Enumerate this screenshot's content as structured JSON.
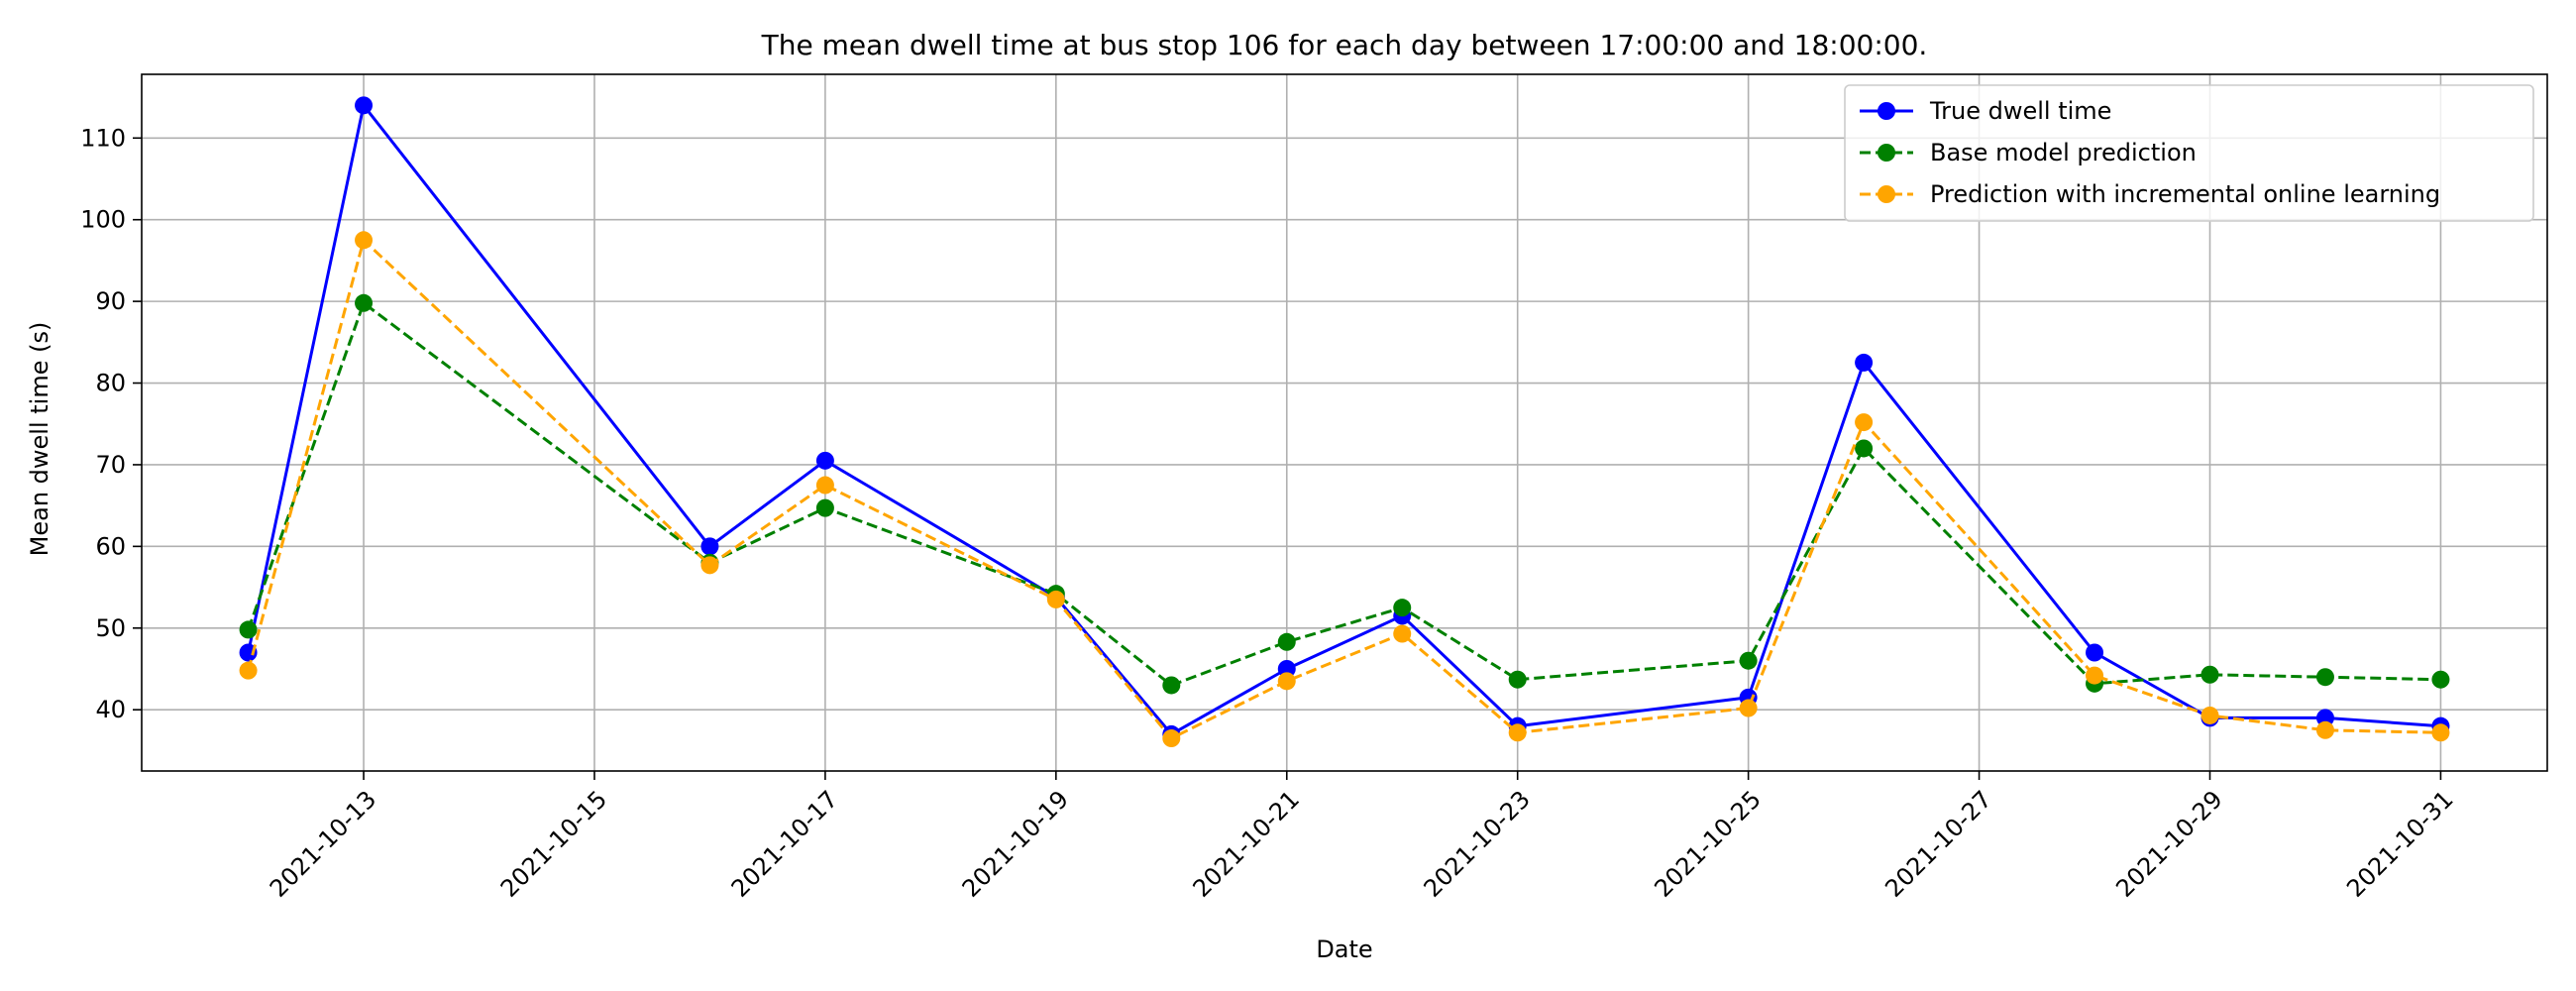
{
  "chart_data": {
    "type": "line",
    "title": "The mean dwell time at bus stop 106 for each day between 17:00:00 and 18:00:00.",
    "xlabel": "Date",
    "ylabel": "Mean dwell time (s)",
    "x": [
      "2021-10-12",
      "2021-10-13",
      "2021-10-16",
      "2021-10-17",
      "2021-10-19",
      "2021-10-20",
      "2021-10-21",
      "2021-10-22",
      "2021-10-23",
      "2021-10-25",
      "2021-10-26",
      "2021-10-28",
      "2021-10-29",
      "2021-10-30",
      "2021-10-31"
    ],
    "xticks": [
      "2021-10-13",
      "2021-10-15",
      "2021-10-17",
      "2021-10-19",
      "2021-10-21",
      "2021-10-23",
      "2021-10-25",
      "2021-10-27",
      "2021-10-29",
      "2021-10-31"
    ],
    "xlim": [
      "2021-10-11T01:50",
      "2021-10-31T22:10"
    ],
    "yticks": [
      40,
      50,
      60,
      70,
      80,
      90,
      100,
      110
    ],
    "ylim": [
      32.5,
      117.8
    ],
    "grid": true,
    "legend_position": "top-right",
    "series": [
      {
        "name": "True dwell time",
        "color": "#0000ff",
        "style": "solid",
        "values": [
          47.0,
          114.0,
          60.0,
          70.5,
          53.8,
          37.0,
          45.0,
          51.5,
          38.0,
          41.5,
          82.5,
          47.0,
          39.0,
          39.0,
          38.0
        ]
      },
      {
        "name": "Base model prediction",
        "color": "#008000",
        "style": "dashed",
        "values": [
          49.8,
          89.8,
          58.0,
          64.7,
          54.2,
          43.0,
          48.3,
          52.5,
          43.7,
          46.0,
          72.0,
          43.2,
          44.3,
          44.0,
          43.7
        ]
      },
      {
        "name": "Prediction with incremental online learning",
        "color": "#ffa500",
        "style": "dashed",
        "values": [
          44.8,
          97.5,
          57.7,
          67.5,
          53.5,
          36.5,
          43.5,
          49.3,
          37.2,
          40.2,
          75.2,
          44.2,
          39.3,
          37.5,
          37.2
        ]
      }
    ]
  }
}
